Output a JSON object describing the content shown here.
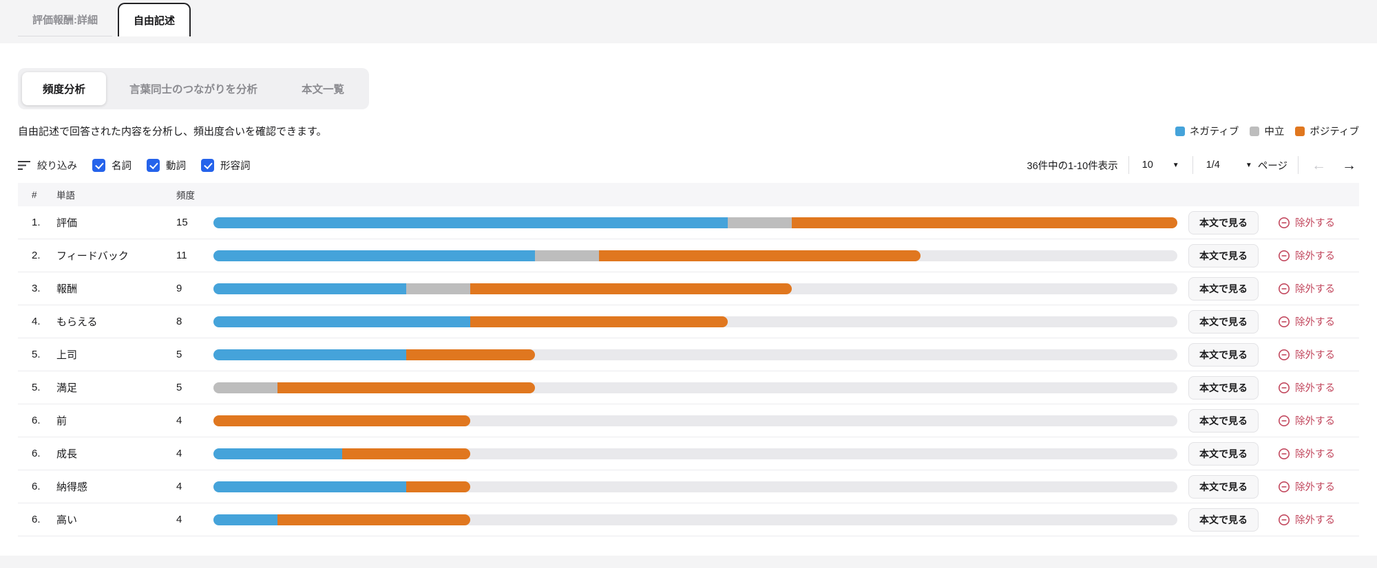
{
  "top_tabs": [
    {
      "label": "評価報酬:詳細",
      "active": false
    },
    {
      "label": "自由記述",
      "active": true
    }
  ],
  "subtabs": [
    {
      "label": "頻度分析",
      "active": true
    },
    {
      "label": "言葉同士のつながりを分析",
      "active": false
    },
    {
      "label": "本文一覧",
      "active": false
    }
  ],
  "description": "自由記述で回答された内容を分析し、頻出度合いを確認できます。",
  "legend": [
    {
      "label": "ネガティブ",
      "color": "#45a3da"
    },
    {
      "label": "中立",
      "color": "#bdbdbd"
    },
    {
      "label": "ポジティブ",
      "color": "#e0771f"
    }
  ],
  "filter": {
    "label": "絞り込み",
    "options": [
      {
        "label": "名詞",
        "checked": true
      },
      {
        "label": "動詞",
        "checked": true
      },
      {
        "label": "形容詞",
        "checked": true
      }
    ]
  },
  "pagination": {
    "summary": "36件中の1-10件表示",
    "page_size": "10",
    "page_indicator": "1/4",
    "page_label": "ページ",
    "prev": "←",
    "next": "→"
  },
  "table": {
    "columns": [
      "#",
      "単語",
      "頻度"
    ],
    "view_label": "本文で見る",
    "exclude_label": "除外する",
    "rows": [
      {
        "rank": "1.",
        "word": "評価",
        "freq": "15",
        "neg": 8,
        "neu": 1,
        "pos": 6
      },
      {
        "rank": "2.",
        "word": "フィードバック",
        "freq": "11",
        "neg": 5,
        "neu": 1,
        "pos": 5
      },
      {
        "rank": "3.",
        "word": "報酬",
        "freq": "9",
        "neg": 3,
        "neu": 1,
        "pos": 5
      },
      {
        "rank": "4.",
        "word": "もらえる",
        "freq": "8",
        "neg": 4,
        "neu": 0,
        "pos": 4
      },
      {
        "rank": "5.",
        "word": "上司",
        "freq": "5",
        "neg": 3,
        "neu": 0,
        "pos": 2
      },
      {
        "rank": "5.",
        "word": "満足",
        "freq": "5",
        "neg": 0,
        "neu": 1,
        "pos": 4
      },
      {
        "rank": "6.",
        "word": "前",
        "freq": "4",
        "neg": 0,
        "neu": 0,
        "pos": 4
      },
      {
        "rank": "6.",
        "word": "成長",
        "freq": "4",
        "neg": 2,
        "neu": 0,
        "pos": 2
      },
      {
        "rank": "6.",
        "word": "納得感",
        "freq": "4",
        "neg": 3,
        "neu": 0,
        "pos": 1
      },
      {
        "rank": "6.",
        "word": "高い",
        "freq": "4",
        "neg": 1,
        "neu": 0,
        "pos": 3
      }
    ]
  },
  "chart_data": {
    "type": "bar",
    "orientation": "horizontal-stacked",
    "title": "頻度分析",
    "categories": [
      "評価",
      "フィードバック",
      "報酬",
      "もらえる",
      "上司",
      "満足",
      "前",
      "成長",
      "納得感",
      "高い"
    ],
    "series": [
      {
        "name": "ネガティブ",
        "color": "#45a3da",
        "values": [
          8,
          5,
          3,
          4,
          3,
          0,
          0,
          2,
          3,
          1
        ]
      },
      {
        "name": "中立",
        "color": "#bdbdbd",
        "values": [
          1,
          1,
          1,
          0,
          0,
          1,
          0,
          0,
          0,
          0
        ]
      },
      {
        "name": "ポジティブ",
        "color": "#e0771f",
        "values": [
          6,
          5,
          5,
          4,
          2,
          4,
          4,
          2,
          1,
          3
        ]
      }
    ],
    "totals": [
      15,
      11,
      9,
      8,
      5,
      5,
      4,
      4,
      4,
      4
    ],
    "xlim": [
      0,
      15
    ],
    "grid": false,
    "legend_position": "top-right"
  }
}
